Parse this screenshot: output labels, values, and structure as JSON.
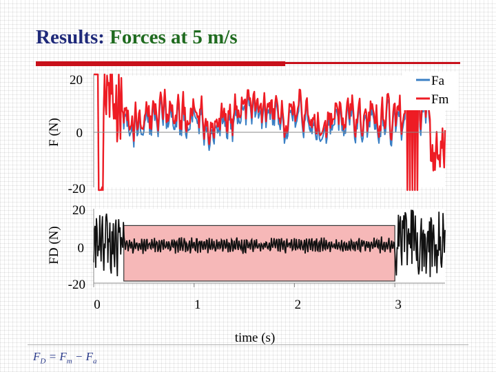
{
  "slide": {
    "title_prefix": "Results:",
    "title_accent": "Forces at 5 m/s",
    "formula": {
      "lhs_var": "F",
      "lhs_sub": "D",
      "eq": " = ",
      "rhs1_var": "F",
      "rhs1_sub": "m",
      "op": " − ",
      "rhs2_var": "F",
      "rhs2_sub": "a"
    }
  },
  "colors": {
    "title": "#1f2a7a",
    "title_accent": "#1f6b1f",
    "rule": "#c8101a",
    "fa": "#3a7fc4",
    "fm": "#ee1c24",
    "fd": "#111111",
    "fd_highlight": "#4a0a0a",
    "highlight_fill": "#f6b8b8"
  },
  "chart_data": [
    {
      "type": "line",
      "ylabel": "F (N)",
      "ylim": [
        -20,
        20
      ],
      "yticks": [
        "20",
        "0",
        "-20"
      ],
      "xlim": [
        0,
        3.5
      ],
      "series": [
        {
          "name": "Fa",
          "color": "#3a7fc4",
          "style": "noisy-force",
          "seed": 7
        },
        {
          "name": "Fm",
          "color": "#ee1c24",
          "style": "noisy-force",
          "seed": 7
        }
      ],
      "legend_position": "top-right"
    },
    {
      "type": "line",
      "ylabel": "FD (N)",
      "xlabel": "time (s)",
      "ylim": [
        -20,
        20
      ],
      "yticks": [
        "20",
        "0",
        "-20"
      ],
      "xlim": [
        0,
        3.5
      ],
      "xticks": [
        "0",
        "1",
        "2",
        "3"
      ],
      "highlight": {
        "x": [
          0.3,
          3.0
        ],
        "y": [
          -20,
          11
        ]
      },
      "series": [
        {
          "name": "",
          "color": "#111111",
          "style": "noise",
          "seed": 3
        }
      ]
    }
  ]
}
